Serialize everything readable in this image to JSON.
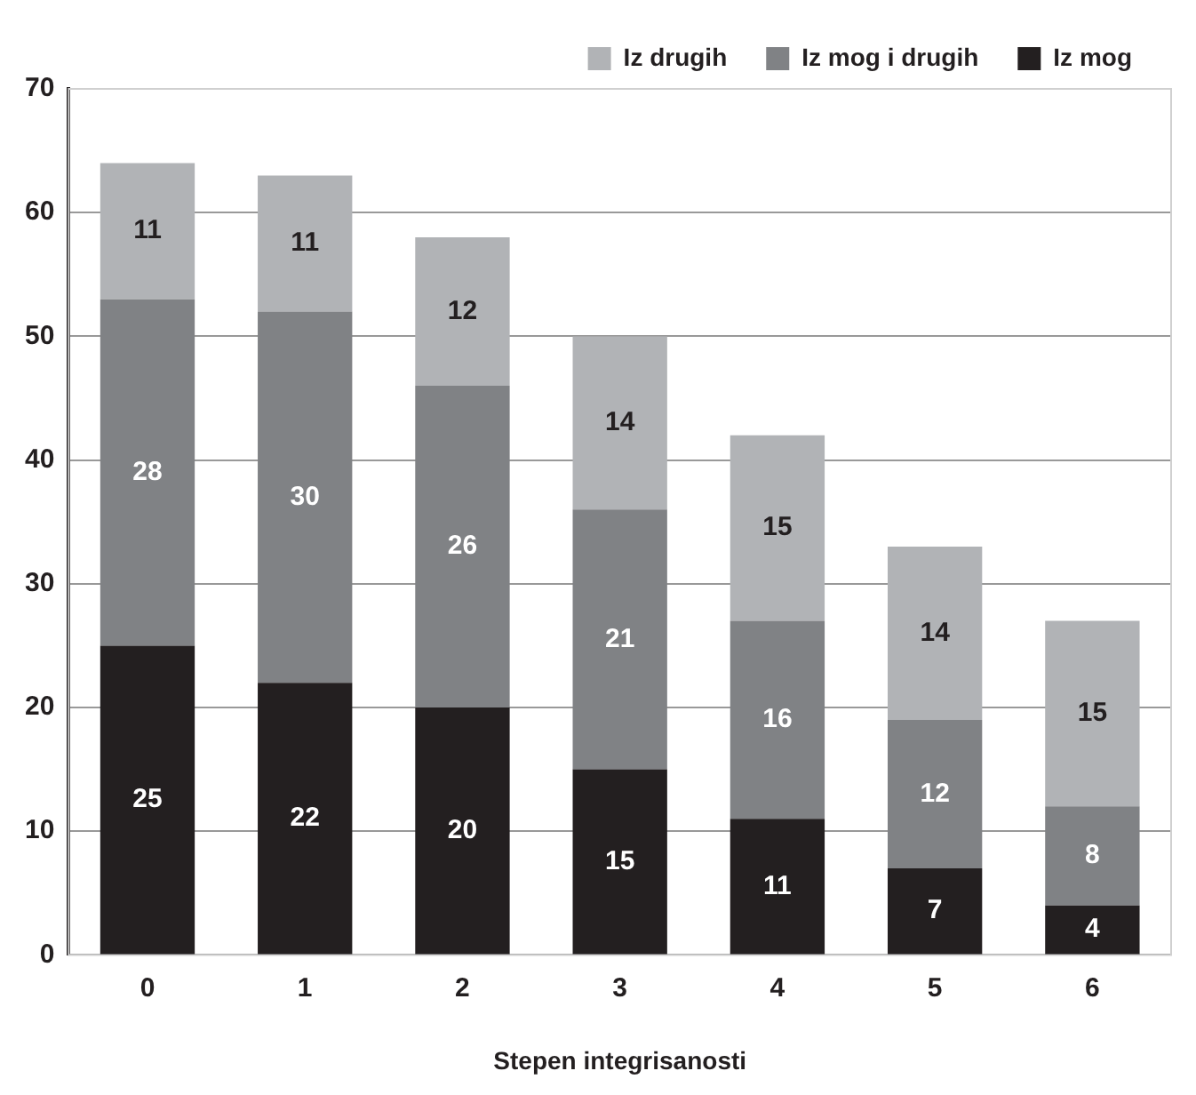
{
  "chart_data": {
    "type": "bar",
    "stacked": true,
    "categories": [
      "0",
      "1",
      "2",
      "3",
      "4",
      "5",
      "6"
    ],
    "series": [
      {
        "name": "Iz mog",
        "color": "#231f20",
        "values": [
          25,
          22,
          20,
          15,
          11,
          7,
          4
        ]
      },
      {
        "name": "Iz mog i drugih",
        "color": "#808285",
        "values": [
          28,
          30,
          26,
          21,
          16,
          12,
          8
        ]
      },
      {
        "name": "Iz drugih",
        "color": "#b1b3b6",
        "values": [
          11,
          11,
          12,
          14,
          15,
          14,
          15
        ]
      }
    ],
    "xlabel": "Stepen integrisanosti",
    "ylim": [
      0,
      70
    ],
    "yticks": [
      0,
      10,
      20,
      30,
      40,
      50,
      60,
      70
    ],
    "grid": "y",
    "legend": "top right",
    "data_labels": true
  }
}
